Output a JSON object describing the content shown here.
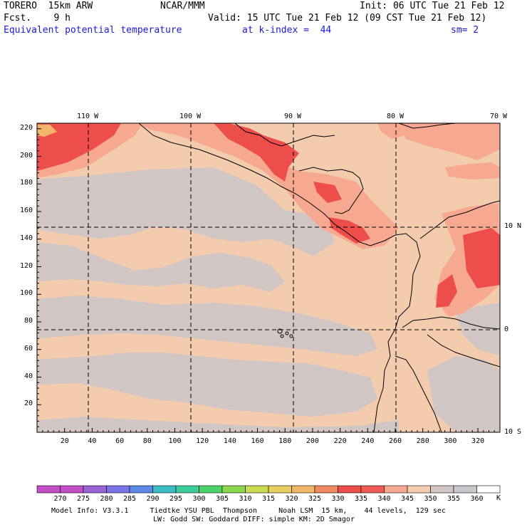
{
  "header": {
    "model": "TORERO  15km ARW",
    "org": "NCAR/MMM",
    "init": "Init: 06 UTC Tue 21 Feb 12",
    "fcst": "Fcst.    9 h",
    "valid": "Valid: 15 UTC Tue 21 Feb 12 (09 CST Tue 21 Feb 12)",
    "field": "Equivalent potential temperature",
    "level": "at k-index =  44",
    "smooth": "sm= 2"
  },
  "axes": {
    "top_lon": [
      "110 W",
      "100 W",
      "90 W",
      "80 W",
      "70 W"
    ],
    "right_lat": [
      "10 N",
      "0",
      "10 S"
    ],
    "left_y": [
      "20",
      "40",
      "60",
      "80",
      "100",
      "120",
      "140",
      "160",
      "180",
      "200",
      "220"
    ],
    "bottom_x": [
      "20",
      "40",
      "60",
      "80",
      "100",
      "120",
      "140",
      "160",
      "180",
      "200",
      "220",
      "240",
      "260",
      "280",
      "300",
      "320"
    ]
  },
  "colorbar": {
    "labels": [
      "270",
      "275",
      "280",
      "285",
      "290",
      "295",
      "300",
      "305",
      "310",
      "315",
      "320",
      "325",
      "330",
      "335",
      "340",
      "345",
      "350",
      "355",
      "360"
    ],
    "unit": "K",
    "colors": [
      "#c24fc6",
      "#9b63d6",
      "#7b74e8",
      "#5c8ae6",
      "#3bbcc4",
      "#3ccc9a",
      "#4ed26a",
      "#8bd84e",
      "#c9dc52",
      "#e8d060",
      "#f2b66a",
      "#f08a62",
      "#ee4e4a",
      "#f25a56",
      "#f7a890",
      "#f3ccb0",
      "#d2c6c4",
      "#c8c8cc",
      "#ffffff"
    ]
  },
  "footer": {
    "line1": "Model Info: V3.3.1     Tiedtke YSU PBL  Thompson     Noah LSM  15 km,    44 levels,  129 sec",
    "line2": "LW: Godd SW: Goddard DIFF: simple KM: 2D Smagor"
  }
}
